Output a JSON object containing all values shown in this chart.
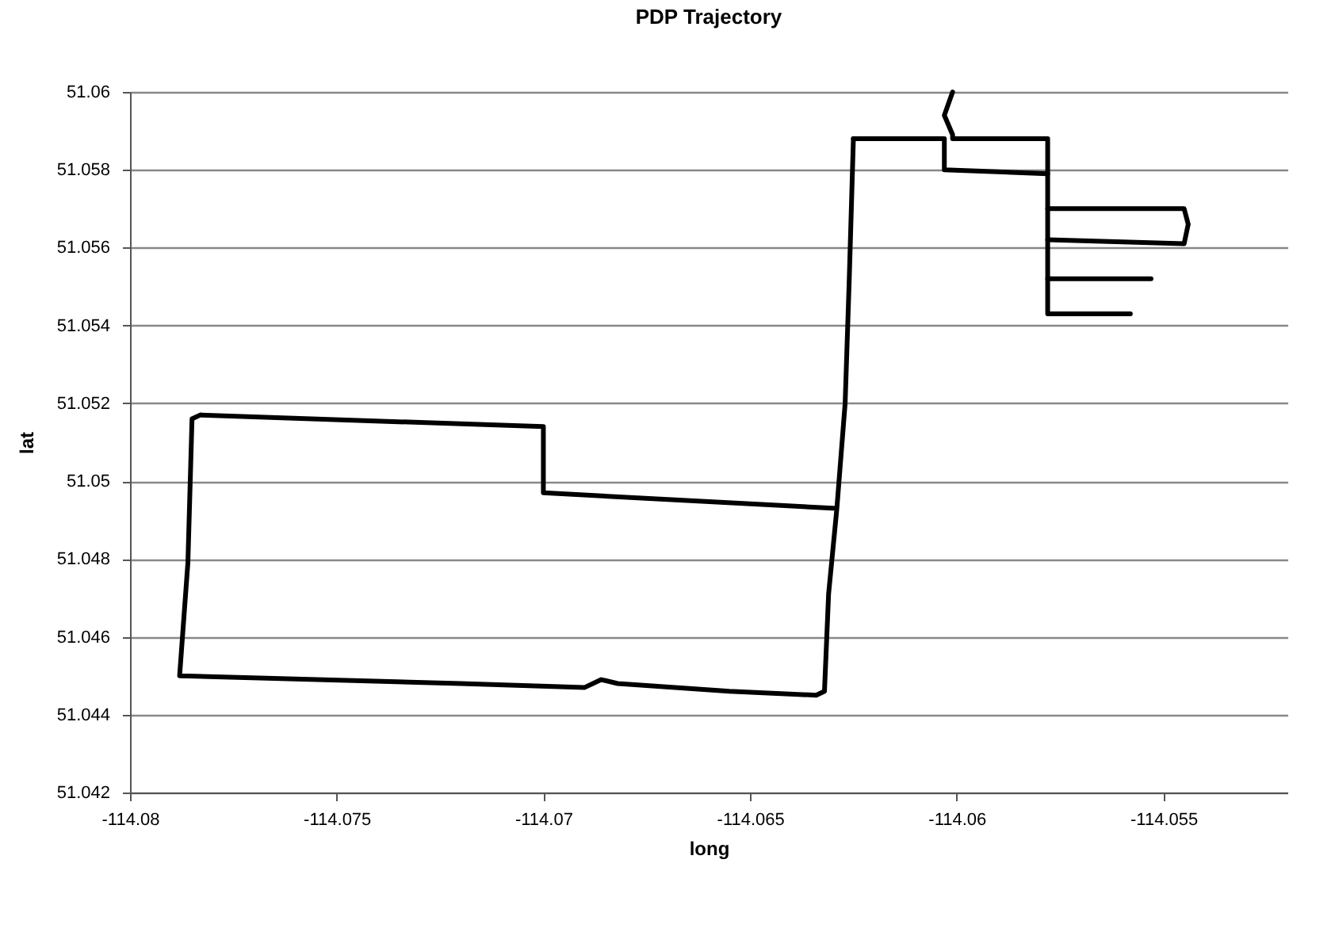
{
  "chart_data": {
    "type": "line",
    "title": "PDP Trajectory",
    "xlabel": "long",
    "ylabel": "lat",
    "xlim": [
      -114.08,
      -114.052
    ],
    "xticks": [
      -114.08,
      -114.075,
      -114.07,
      -114.065,
      -114.06,
      -114.055
    ],
    "ylim": [
      51.042,
      51.06
    ],
    "yticks": [
      51.042,
      51.044,
      51.046,
      51.048,
      51.05,
      51.052,
      51.054,
      51.056,
      51.058,
      51.06
    ],
    "grid": "y",
    "legend": false,
    "line_style": "solid",
    "series": [
      {
        "color": "#000000",
        "x": [
          -114.0601,
          -114.0603,
          -114.0601,
          -114.0601,
          -114.0578,
          -114.0578,
          -114.0558
        ],
        "values": [
          51.06,
          51.0594,
          51.0589,
          51.0588,
          51.0588,
          51.0543,
          51.0543
        ]
      },
      {
        "color": "#000000",
        "x": [
          -114.0625,
          -114.0603,
          -114.0603,
          -114.0578
        ],
        "values": [
          51.0588,
          51.0588,
          51.058,
          51.0579
        ]
      },
      {
        "color": "#000000",
        "x": [
          -114.0578,
          -114.0545,
          -114.0544,
          -114.0545,
          -114.0578
        ],
        "values": [
          51.057,
          51.057,
          51.0566,
          51.0561,
          51.0562
        ]
      },
      {
        "color": "#000000",
        "x": [
          -114.0578,
          -114.0553
        ],
        "values": [
          51.0552,
          51.0552
        ]
      },
      {
        "color": "#000000",
        "x": [
          -114.0625,
          -114.0626,
          -114.0627,
          -114.0629,
          -114.07,
          -114.07,
          -114.0783,
          -114.0785,
          -114.0786,
          -114.0788,
          -114.072,
          -114.069,
          -114.0686,
          -114.0682,
          -114.0655,
          -114.0634,
          -114.0632,
          -114.0631,
          -114.0629
        ],
        "values": [
          51.0588,
          51.0552,
          51.052,
          51.0493,
          51.0497,
          51.0514,
          51.0517,
          51.0516,
          51.0479,
          51.045,
          51.0448,
          51.0447,
          51.0449,
          51.0448,
          51.0446,
          51.0445,
          51.0446,
          51.0471,
          51.0493
        ]
      }
    ]
  }
}
